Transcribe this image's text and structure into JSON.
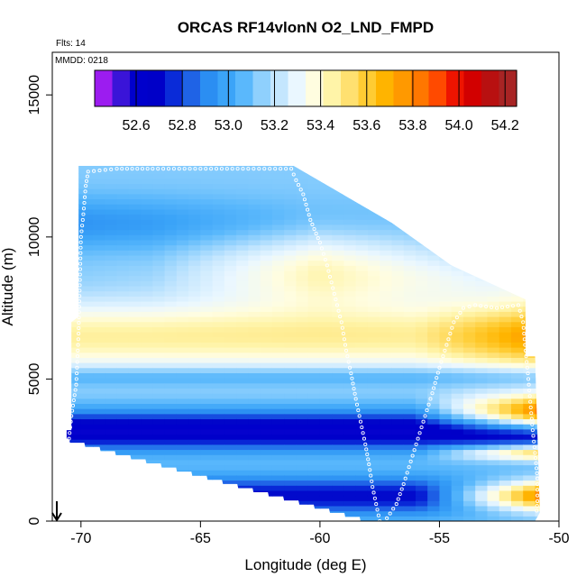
{
  "chart_data": {
    "type": "heatmap",
    "title": "ORCAS RF14vlonN O2_LND_FMPD",
    "annotations": {
      "flights": "Flts: 14",
      "mmdd": "MMDD: 0218"
    },
    "xlabel": "Longitude (deg E)",
    "ylabel": "Altitude (m)",
    "xlim": [
      -71.2,
      -50
    ],
    "ylim": [
      0,
      16500
    ],
    "xticks": [
      -70,
      -65,
      -60,
      -55,
      -50
    ],
    "yticks": [
      0,
      5000,
      10000,
      15000
    ],
    "xtick_labels": [
      "-70",
      "-65",
      "-60",
      "-55",
      "-50"
    ],
    "ytick_labels": [
      "0",
      "5000",
      "10000",
      "15000"
    ],
    "colorbar": {
      "range": [
        52.42,
        54.25
      ],
      "ticks": [
        52.6,
        52.8,
        53.0,
        53.2,
        53.4,
        53.6,
        53.8,
        54.0,
        54.2
      ],
      "tick_labels": [
        "52.6",
        "52.8",
        "53.0",
        "53.2",
        "53.4",
        "53.6",
        "53.8",
        "54.0",
        "54.2"
      ],
      "colors": [
        "#9c1cf0",
        "#3a14d8",
        "#0000cc",
        "#0000c8",
        "#0a2bd8",
        "#1f63e6",
        "#2b8ef2",
        "#3ba4f8",
        "#5ab8fc",
        "#8fd0fd",
        "#c4e6fe",
        "#eaf7ff",
        "#fffde0",
        "#fff4a8",
        "#ffe070",
        "#ffcc33",
        "#ffb400",
        "#ff9900",
        "#ff7700",
        "#ff4a00",
        "#ee1400",
        "#d20000",
        "#b81010",
        "#a82424"
      ]
    },
    "flight_track": [
      [
        -70.5,
        2900
      ],
      [
        -70.4,
        3700
      ],
      [
        -70.2,
        4800
      ],
      [
        -70.1,
        6600
      ],
      [
        -70.0,
        10000
      ],
      [
        -69.9,
        10800
      ],
      [
        -69.8,
        11800
      ],
      [
        -69.7,
        12300
      ],
      [
        -68.5,
        12400
      ],
      [
        -67,
        12400
      ],
      [
        -65,
        12400
      ],
      [
        -63,
        12400
      ],
      [
        -61.2,
        12400
      ],
      [
        -61.0,
        12000
      ],
      [
        -60.7,
        11500
      ],
      [
        -60.4,
        10600
      ],
      [
        -60.0,
        9800
      ],
      [
        -59.7,
        9000
      ],
      [
        -59.4,
        8000
      ],
      [
        -59.1,
        7000
      ],
      [
        -58.9,
        6000
      ],
      [
        -58.7,
        5200
      ],
      [
        -58.5,
        4300
      ],
      [
        -58.3,
        3500
      ],
      [
        -58.1,
        2700
      ],
      [
        -57.95,
        2000
      ],
      [
        -57.8,
        1200
      ],
      [
        -57.6,
        400
      ],
      [
        -57.5,
        0
      ],
      [
        -57.2,
        100
      ],
      [
        -56.8,
        600
      ],
      [
        -56.5,
        1300
      ],
      [
        -56.2,
        2100
      ],
      [
        -55.9,
        2900
      ],
      [
        -55.6,
        3700
      ],
      [
        -55.3,
        4500
      ],
      [
        -55.0,
        5400
      ],
      [
        -54.7,
        6200
      ],
      [
        -54.4,
        7000
      ],
      [
        -54.0,
        7500
      ],
      [
        -53.5,
        7600
      ],
      [
        -52.6,
        7500
      ],
      [
        -51.7,
        7600
      ],
      [
        -51.5,
        7000
      ],
      [
        -51.4,
        6000
      ],
      [
        -51.3,
        5200
      ],
      [
        -51.2,
        4200
      ],
      [
        -51.1,
        3200
      ],
      [
        -51.0,
        2400
      ],
      [
        -50.9,
        1500
      ],
      [
        -50.9,
        700
      ],
      [
        -50.95,
        200
      ]
    ]
  }
}
